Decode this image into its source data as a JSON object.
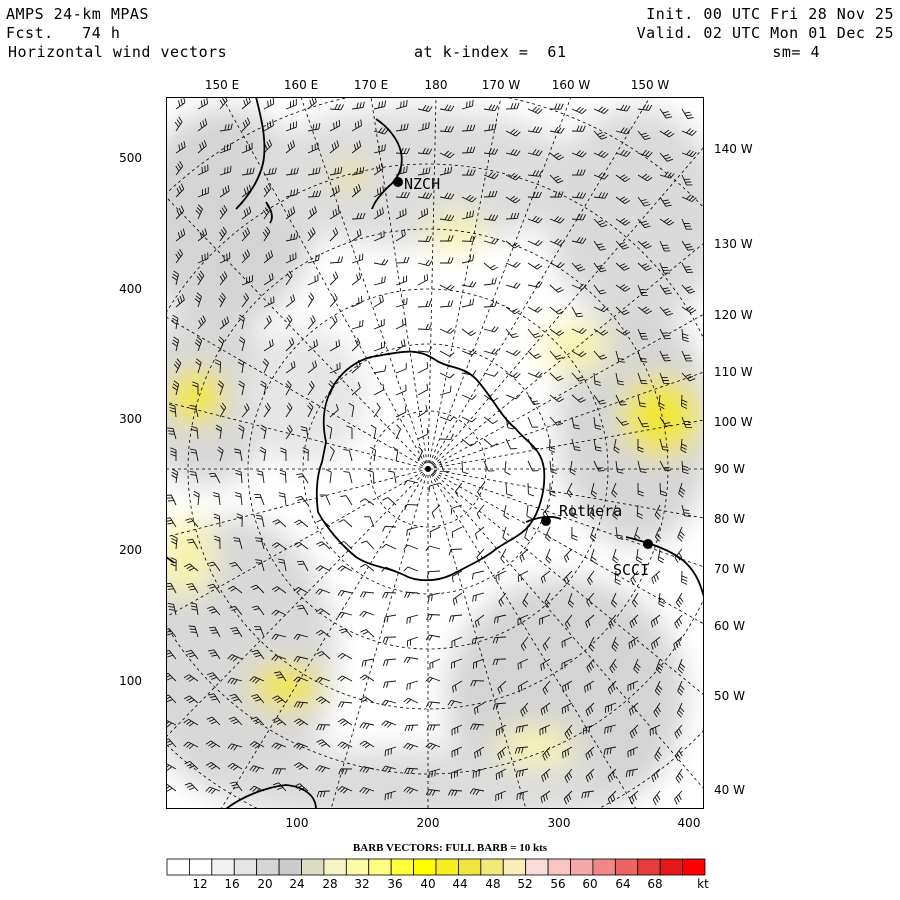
{
  "header": {
    "model": "AMPS 24-km MPAS",
    "forecast": "Fcst.   74 h",
    "field": "Horizontal wind vectors",
    "level": "at k-index =  61",
    "init": "Init. 00 UTC Fri 28 Nov 25",
    "valid": "Valid. 02 UTC Mon 01 Dec 25",
    "smoothing": "sm= 4"
  },
  "longitude_labels": {
    "top": [
      "150 E",
      "160 E",
      "170 E",
      "180",
      "170 W",
      "160 W",
      "150 W"
    ],
    "right": [
      "140 W",
      "130 W",
      "120 W",
      "110 W",
      "100 W",
      "90 W",
      "80 W",
      "70 W",
      "60 W",
      "50 W",
      "40 W"
    ]
  },
  "grid_axes": {
    "left": [
      "500",
      "400",
      "300",
      "200",
      "100"
    ],
    "bottom": [
      "100",
      "200",
      "300",
      "400"
    ]
  },
  "stations": [
    {
      "id": "NZCH"
    },
    {
      "id": "Rothera"
    },
    {
      "id": "SCCI"
    }
  ],
  "caption": "BARB VECTORS:  FULL BARB = 10 kts",
  "colorbar": {
    "unit": "kt",
    "labels": [
      "12",
      "16",
      "20",
      "24",
      "28",
      "32",
      "36",
      "40",
      "44",
      "48",
      "52",
      "56",
      "60",
      "64",
      "68"
    ],
    "colors": [
      "#ffffff",
      "#ffffff",
      "#f2f2f2",
      "#e4e4e4",
      "#d6d6d6",
      "#cbcbcb",
      "#dcdcc0",
      "#f4f4c6",
      "#fafaa8",
      "#fefe80",
      "#ffff3a",
      "#ffff00",
      "#f7ee22",
      "#efe440",
      "#f3e878",
      "#f9eeb8",
      "#fbdada",
      "#f8c4c4",
      "#f4a8a8",
      "#f08888",
      "#ec6464",
      "#e83c3c",
      "#e41818",
      "#ff0000"
    ]
  },
  "colors": {
    "land_outline": "#000000",
    "gridline": "#000000",
    "shade_light": "#e8e8e8",
    "shade_mid": "#cfcfcf",
    "shade_yellow": "#f6f3b0",
    "shade_yellow_strong": "#f2e638"
  }
}
